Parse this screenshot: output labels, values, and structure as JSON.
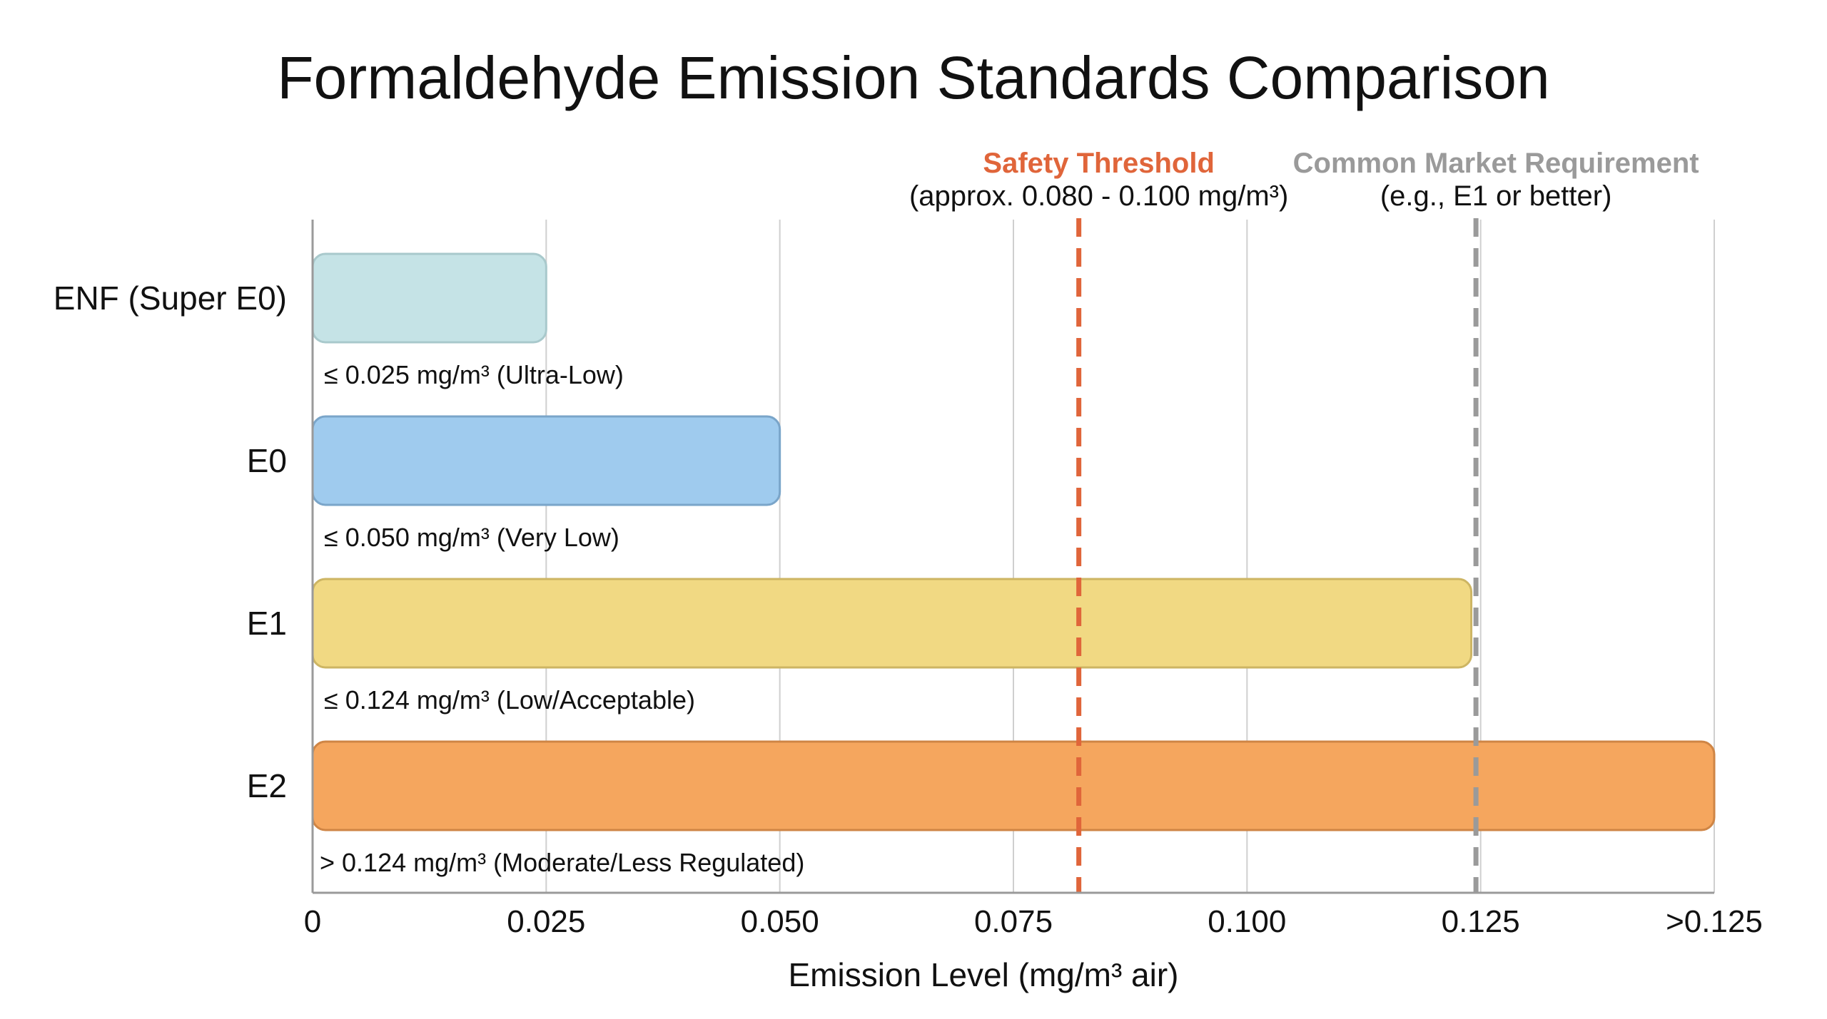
{
  "chart_data": {
    "type": "bar",
    "orientation": "horizontal",
    "title": "Formaldehyde Emission Standards Comparison",
    "xlabel": "Emission Level (mg/m³ air)",
    "ylabel": "",
    "xlim": [
      0,
      0.15
    ],
    "grid": true,
    "ticks": [
      {
        "value": 0,
        "label": "0"
      },
      {
        "value": 0.025,
        "label": "0.025"
      },
      {
        "value": 0.05,
        "label": "0.050"
      },
      {
        "value": 0.075,
        "label": "0.075"
      },
      {
        "value": 0.1,
        "label": "0.100"
      },
      {
        "value": 0.125,
        "label": "0.125"
      },
      {
        "value": 0.15,
        "label": ">0.125"
      }
    ],
    "bars": [
      {
        "category": "ENF (Super E0)",
        "value": 0.025,
        "label": "≤ 0.025 mg/m³ (Ultra-Low)",
        "color": "#c5e3e6",
        "stroke": "#a9c9cc"
      },
      {
        "category": "E0",
        "value": 0.05,
        "label": "≤ 0.050 mg/m³ (Very Low)",
        "color": "#9fcbee",
        "stroke": "#7aa5c9"
      },
      {
        "category": "E1",
        "value": 0.124,
        "label": "≤ 0.124 mg/m³ (Low/Acceptable)",
        "color": "#f1d983",
        "stroke": "#cdb563"
      },
      {
        "category": "E2",
        "value": 0.15,
        "label": "> 0.124 mg/m³ (Moderate/Less Regulated)",
        "color": "#f5a65e",
        "stroke": "#cf8545"
      }
    ],
    "reference_lines": [
      {
        "value": 0.082,
        "title": "Safety Threshold",
        "subtitle": "(approx. 0.080 - 0.100 mg/m³)",
        "color": "#e0653a"
      },
      {
        "value": 0.1245,
        "title": "Common Market Requirement",
        "subtitle": "(e.g., E1 or better)",
        "color": "#9a9a9a"
      }
    ]
  }
}
